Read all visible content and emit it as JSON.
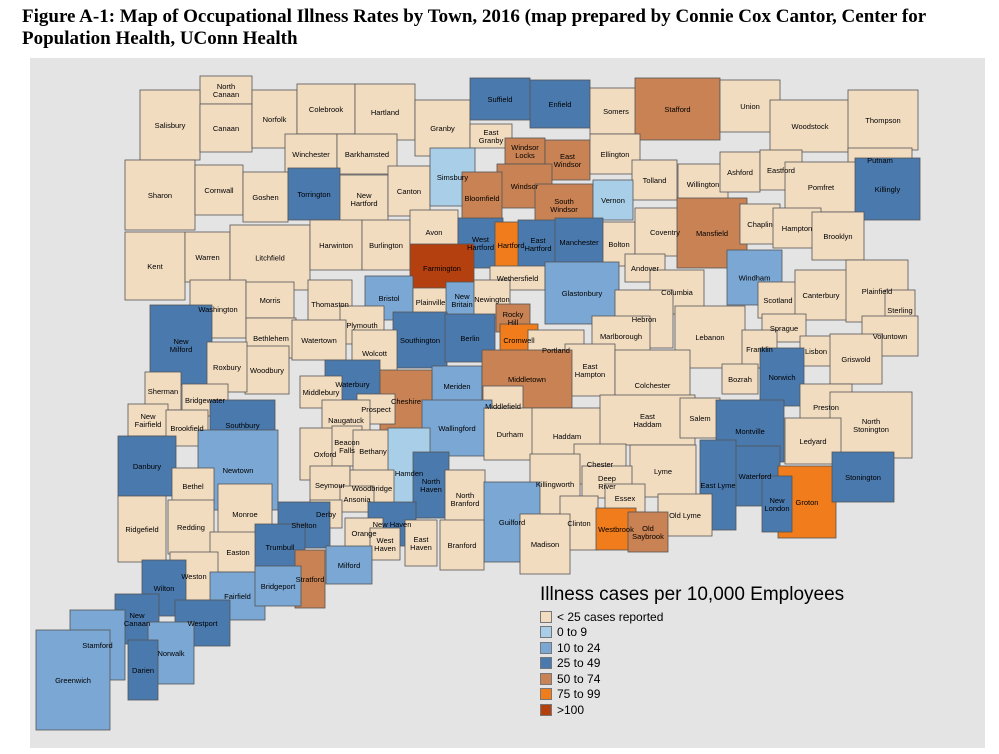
{
  "title": "Figure A-1:  Map of Occupational Illness Rates by Town, 2016 (map prepared by Connie Cox Cantor, Center for Population Health, UConn Health",
  "legend": {
    "title": "Illness cases per 10,000 Employees",
    "items": [
      {
        "label": "< 25 cases reported",
        "color": "#f2dcc0"
      },
      {
        "label": "0 to 9",
        "color": "#a9cfe8"
      },
      {
        "label": "10 to 24",
        "color": "#7aa7d3"
      },
      {
        "label": "25 to 49",
        "color": "#4a79ae"
      },
      {
        "label": "50 to 74",
        "color": "#c98253"
      },
      {
        "label": "75 to 99",
        "color": "#f07c1c"
      },
      {
        "label": ">100",
        "color": "#b5400f"
      }
    ]
  },
  "towns": [
    {
      "name": "North Canaan",
      "cls": 0
    },
    {
      "name": "Salisbury",
      "cls": 0
    },
    {
      "name": "Canaan",
      "cls": 0
    },
    {
      "name": "Norfolk",
      "cls": 0
    },
    {
      "name": "Colebrook",
      "cls": 0
    },
    {
      "name": "Hartland",
      "cls": 0
    },
    {
      "name": "Granby",
      "cls": 0
    },
    {
      "name": "Suffield",
      "cls": 3
    },
    {
      "name": "Enfield",
      "cls": 3
    },
    {
      "name": "Somers",
      "cls": 0
    },
    {
      "name": "Stafford",
      "cls": 4
    },
    {
      "name": "Union",
      "cls": 0
    },
    {
      "name": "Woodstock",
      "cls": 0
    },
    {
      "name": "Thompson",
      "cls": 0
    },
    {
      "name": "Winchester",
      "cls": 0
    },
    {
      "name": "Barkhamsted",
      "cls": 0
    },
    {
      "name": "East Granby",
      "cls": 0
    },
    {
      "name": "Windsor Locks",
      "cls": 4
    },
    {
      "name": "East Windsor",
      "cls": 4
    },
    {
      "name": "Ellington",
      "cls": 0
    },
    {
      "name": "Tolland",
      "cls": 0
    },
    {
      "name": "Willington",
      "cls": 0
    },
    {
      "name": "Ashford",
      "cls": 0
    },
    {
      "name": "Eastford",
      "cls": 0
    },
    {
      "name": "Putnam",
      "cls": 0
    },
    {
      "name": "Sharon",
      "cls": 0
    },
    {
      "name": "Cornwall",
      "cls": 0
    },
    {
      "name": "Goshen",
      "cls": 0
    },
    {
      "name": "Torrington",
      "cls": 3
    },
    {
      "name": "New Hartford",
      "cls": 0
    },
    {
      "name": "Canton",
      "cls": 0
    },
    {
      "name": "Simsbury",
      "cls": 1
    },
    {
      "name": "Windsor",
      "cls": 4
    },
    {
      "name": "Bloomfield",
      "cls": 4
    },
    {
      "name": "South Windsor",
      "cls": 4
    },
    {
      "name": "Vernon",
      "cls": 1
    },
    {
      "name": "Pomfret",
      "cls": 0
    },
    {
      "name": "Killingly",
      "cls": 3
    },
    {
      "name": "Kent",
      "cls": 0
    },
    {
      "name": "Warren",
      "cls": 0
    },
    {
      "name": "Litchfield",
      "cls": 0
    },
    {
      "name": "Harwinton",
      "cls": 0
    },
    {
      "name": "Burlington",
      "cls": 0
    },
    {
      "name": "Avon",
      "cls": 0
    },
    {
      "name": "West Hartford",
      "cls": 3
    },
    {
      "name": "Hartford",
      "cls": 5
    },
    {
      "name": "East Hartford",
      "cls": 3
    },
    {
      "name": "Manchester",
      "cls": 3
    },
    {
      "name": "Bolton",
      "cls": 0
    },
    {
      "name": "Coventry",
      "cls": 0
    },
    {
      "name": "Mansfield",
      "cls": 4
    },
    {
      "name": "Chaplin",
      "cls": 0
    },
    {
      "name": "Hampton",
      "cls": 0
    },
    {
      "name": "Brooklyn",
      "cls": 0
    },
    {
      "name": "Farmington",
      "cls": 6
    },
    {
      "name": "Andover",
      "cls": 0
    },
    {
      "name": "Windham",
      "cls": 2
    },
    {
      "name": "Washington",
      "cls": 0
    },
    {
      "name": "Morris",
      "cls": 0
    },
    {
      "name": "Thomaston",
      "cls": 0
    },
    {
      "name": "Bristol",
      "cls": 2
    },
    {
      "name": "Plainville",
      "cls": 0
    },
    {
      "name": "New Britain",
      "cls": 2
    },
    {
      "name": "Wethersfield",
      "cls": 0
    },
    {
      "name": "Newington",
      "cls": 0
    },
    {
      "name": "Glastonbury",
      "cls": 2
    },
    {
      "name": "Columbia",
      "cls": 0
    },
    {
      "name": "Scotland",
      "cls": 0
    },
    {
      "name": "Canterbury",
      "cls": 0
    },
    {
      "name": "Plainfield",
      "cls": 0
    },
    {
      "name": "Sterling",
      "cls": 0
    },
    {
      "name": "Hebron",
      "cls": 0
    },
    {
      "name": "Bethlehem",
      "cls": 0
    },
    {
      "name": "Plymouth",
      "cls": 0
    },
    {
      "name": "Rocky Hill",
      "cls": 4
    },
    {
      "name": "New Milford",
      "cls": 3
    },
    {
      "name": "Watertown",
      "cls": 0
    },
    {
      "name": "Southington",
      "cls": 3
    },
    {
      "name": "Berlin",
      "cls": 3
    },
    {
      "name": "Cromwell",
      "cls": 5
    },
    {
      "name": "Marlborough",
      "cls": 0
    },
    {
      "name": "Lebanon",
      "cls": 0
    },
    {
      "name": "Sprague",
      "cls": 0
    },
    {
      "name": "Voluntown",
      "cls": 0
    },
    {
      "name": "Wolcott",
      "cls": 0
    },
    {
      "name": "Portland",
      "cls": 0
    },
    {
      "name": "Franklin",
      "cls": 0
    },
    {
      "name": "Lisbon",
      "cls": 0
    },
    {
      "name": "Griswold",
      "cls": 0
    },
    {
      "name": "Woodbury",
      "cls": 0
    },
    {
      "name": "Roxbury",
      "cls": 0
    },
    {
      "name": "East Hampton",
      "cls": 0
    },
    {
      "name": "Colchester",
      "cls": 0
    },
    {
      "name": "Sherman",
      "cls": 0
    },
    {
      "name": "Waterbury",
      "cls": 3
    },
    {
      "name": "Meriden",
      "cls": 2
    },
    {
      "name": "Middletown",
      "cls": 4
    },
    {
      "name": "Bozrah",
      "cls": 0
    },
    {
      "name": "Norwich",
      "cls": 3
    },
    {
      "name": "Middlebury",
      "cls": 0
    },
    {
      "name": "Bridgewater",
      "cls": 0
    },
    {
      "name": "Preston",
      "cls": 0
    },
    {
      "name": "Cheshire",
      "cls": 4
    },
    {
      "name": "Prospect",
      "cls": 0
    },
    {
      "name": "Middlefield",
      "cls": 0
    },
    {
      "name": "New Fairfield",
      "cls": 0
    },
    {
      "name": "Brookfield",
      "cls": 0
    },
    {
      "name": "Southbury",
      "cls": 3
    },
    {
      "name": "Naugatuck",
      "cls": 0
    },
    {
      "name": "Wallingford",
      "cls": 2
    },
    {
      "name": "Durham",
      "cls": 0
    },
    {
      "name": "Haddam",
      "cls": 0
    },
    {
      "name": "East Haddam",
      "cls": 0
    },
    {
      "name": "Salem",
      "cls": 0
    },
    {
      "name": "Montville",
      "cls": 3
    },
    {
      "name": "North Stonington",
      "cls": 0
    },
    {
      "name": "Ledyard",
      "cls": 0
    },
    {
      "name": "Oxford",
      "cls": 0
    },
    {
      "name": "Beacon Falls",
      "cls": 0
    },
    {
      "name": "Bethany",
      "cls": 0
    },
    {
      "name": "Hamden",
      "cls": 1
    },
    {
      "name": "Danbury",
      "cls": 3
    },
    {
      "name": "Newtown",
      "cls": 2
    },
    {
      "name": "Chester",
      "cls": 0
    },
    {
      "name": "Lyme",
      "cls": 0
    },
    {
      "name": "Killingworth",
      "cls": 0
    },
    {
      "name": "Deep River",
      "cls": 0
    },
    {
      "name": "Waterford",
      "cls": 3
    },
    {
      "name": "North Haven",
      "cls": 3
    },
    {
      "name": "Seymour",
      "cls": 0
    },
    {
      "name": "Woodbridge",
      "cls": 0
    },
    {
      "name": "Ansonia",
      "cls": 0
    },
    {
      "name": "Bethel",
      "cls": 0
    },
    {
      "name": "Essex",
      "cls": 0
    },
    {
      "name": "East Lyme",
      "cls": 3
    },
    {
      "name": "Groton",
      "cls": 5
    },
    {
      "name": "Stonington",
      "cls": 3
    },
    {
      "name": "Monroe",
      "cls": 0
    },
    {
      "name": "North Branford",
      "cls": 0
    },
    {
      "name": "Derby",
      "cls": 0
    },
    {
      "name": "Old Lyme",
      "cls": 0
    },
    {
      "name": "New London",
      "cls": 3
    },
    {
      "name": "Ridgefield",
      "cls": 0
    },
    {
      "name": "Redding",
      "cls": 0
    },
    {
      "name": "Shelton",
      "cls": 3
    },
    {
      "name": "New Haven",
      "cls": 3
    },
    {
      "name": "Guilford",
      "cls": 2
    },
    {
      "name": "Clinton",
      "cls": 0
    },
    {
      "name": "Westbrook",
      "cls": 5
    },
    {
      "name": "Old Saybrook",
      "cls": 4
    },
    {
      "name": "Madison",
      "cls": 0
    },
    {
      "name": "Branford",
      "cls": 0
    },
    {
      "name": "Orange",
      "cls": 0
    },
    {
      "name": "West Haven",
      "cls": 0
    },
    {
      "name": "East Haven",
      "cls": 0
    },
    {
      "name": "Easton",
      "cls": 0
    },
    {
      "name": "Trumbull",
      "cls": 3
    },
    {
      "name": "Milford",
      "cls": 2
    },
    {
      "name": "Weston",
      "cls": 0
    },
    {
      "name": "Stratford",
      "cls": 4
    },
    {
      "name": "Wilton",
      "cls": 3
    },
    {
      "name": "Fairfield",
      "cls": 2
    },
    {
      "name": "Bridgeport",
      "cls": 2
    },
    {
      "name": "New Canaan",
      "cls": 3
    },
    {
      "name": "Westport",
      "cls": 3
    },
    {
      "name": "Stamford",
      "cls": 2
    },
    {
      "name": "Norwalk",
      "cls": 2
    },
    {
      "name": "Darien",
      "cls": 3
    },
    {
      "name": "Greenwich",
      "cls": 2
    }
  ]
}
